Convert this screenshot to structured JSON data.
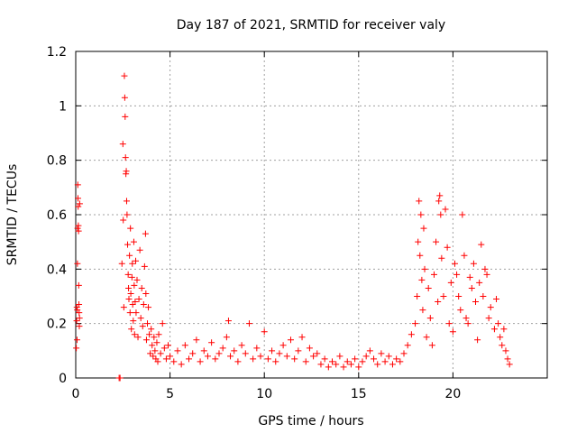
{
  "chart_data": {
    "type": "scatter",
    "title": "Day 187 of 2021, SRMTID for receiver valy",
    "xlabel": "GPS time / hours",
    "ylabel": "SRMTID / TECUs",
    "xlim": [
      0,
      25
    ],
    "ylim": [
      0,
      1.2
    ],
    "x_ticks": [
      0,
      5,
      10,
      15,
      20
    ],
    "x_tick_labels": [
      "0",
      "5",
      "10",
      "15",
      "20"
    ],
    "y_ticks": [
      0,
      0.2,
      0.4,
      0.6,
      0.8,
      1.0,
      1.2
    ],
    "y_tick_labels": [
      "0",
      "0.2",
      "0.4",
      "0.6",
      "0.8",
      "1",
      "1.2"
    ],
    "grid": true,
    "legend": "none",
    "marker": "+",
    "marker_color": "#ff0000",
    "series": [
      {
        "name": "SRMTID",
        "points": [
          [
            0.03,
            0.11
          ],
          [
            0.05,
            0.21
          ],
          [
            0.06,
            0.26
          ],
          [
            0.07,
            0.14
          ],
          [
            0.08,
            0.25
          ],
          [
            0.09,
            0.42
          ],
          [
            0.1,
            0.55
          ],
          [
            0.11,
            0.71
          ],
          [
            0.12,
            0.66
          ],
          [
            0.13,
            0.63
          ],
          [
            0.14,
            0.56
          ],
          [
            0.15,
            0.54
          ],
          [
            0.16,
            0.34
          ],
          [
            0.17,
            0.27
          ],
          [
            0.18,
            0.24
          ],
          [
            0.19,
            0.19
          ],
          [
            0.2,
            0.22
          ],
          [
            0.21,
            0.64
          ],
          [
            2.3,
            0.0
          ],
          [
            2.35,
            0.0
          ],
          [
            2.45,
            0.42
          ],
          [
            2.5,
            0.86
          ],
          [
            2.52,
            0.58
          ],
          [
            2.55,
            0.26
          ],
          [
            2.58,
            1.11
          ],
          [
            2.6,
            1.03
          ],
          [
            2.62,
            0.96
          ],
          [
            2.64,
            0.81
          ],
          [
            2.66,
            0.75
          ],
          [
            2.68,
            0.76
          ],
          [
            2.7,
            0.65
          ],
          [
            2.72,
            0.6
          ],
          [
            2.75,
            0.49
          ],
          [
            2.78,
            0.38
          ],
          [
            2.8,
            0.33
          ],
          [
            2.82,
            0.29
          ],
          [
            2.85,
            0.45
          ],
          [
            2.88,
            0.24
          ],
          [
            2.9,
            0.55
          ],
          [
            2.92,
            0.31
          ],
          [
            2.95,
            0.18
          ],
          [
            2.98,
            0.37
          ],
          [
            3.0,
            0.42
          ],
          [
            3.02,
            0.27
          ],
          [
            3.05,
            0.21
          ],
          [
            3.08,
            0.5
          ],
          [
            3.1,
            0.34
          ],
          [
            3.12,
            0.16
          ],
          [
            3.15,
            0.28
          ],
          [
            3.18,
            0.43
          ],
          [
            3.2,
            0.24
          ],
          [
            3.25,
            0.36
          ],
          [
            3.3,
            0.15
          ],
          [
            3.35,
            0.29
          ],
          [
            3.4,
            0.47
          ],
          [
            3.45,
            0.22
          ],
          [
            3.5,
            0.33
          ],
          [
            3.55,
            0.19
          ],
          [
            3.6,
            0.27
          ],
          [
            3.65,
            0.41
          ],
          [
            3.7,
            0.53
          ],
          [
            3.72,
            0.31
          ],
          [
            3.75,
            0.14
          ],
          [
            3.8,
            0.2
          ],
          [
            3.85,
            0.26
          ],
          [
            3.9,
            0.16
          ],
          [
            3.95,
            0.09
          ],
          [
            4.0,
            0.18
          ],
          [
            4.05,
            0.12
          ],
          [
            4.1,
            0.08
          ],
          [
            4.15,
            0.15
          ],
          [
            4.2,
            0.1
          ],
          [
            4.25,
            0.07
          ],
          [
            4.3,
            0.13
          ],
          [
            4.35,
            0.06
          ],
          [
            4.4,
            0.16
          ],
          [
            4.5,
            0.09
          ],
          [
            4.6,
            0.2
          ],
          [
            4.7,
            0.11
          ],
          [
            4.8,
            0.07
          ],
          [
            4.9,
            0.12
          ],
          [
            5.0,
            0.08
          ],
          [
            5.2,
            0.06
          ],
          [
            5.4,
            0.1
          ],
          [
            5.6,
            0.05
          ],
          [
            5.8,
            0.12
          ],
          [
            6.0,
            0.07
          ],
          [
            6.2,
            0.09
          ],
          [
            6.4,
            0.14
          ],
          [
            6.6,
            0.06
          ],
          [
            6.8,
            0.1
          ],
          [
            7.0,
            0.08
          ],
          [
            7.2,
            0.13
          ],
          [
            7.4,
            0.07
          ],
          [
            7.6,
            0.09
          ],
          [
            7.8,
            0.11
          ],
          [
            8.0,
            0.15
          ],
          [
            8.1,
            0.21
          ],
          [
            8.2,
            0.08
          ],
          [
            8.4,
            0.1
          ],
          [
            8.6,
            0.06
          ],
          [
            8.8,
            0.12
          ],
          [
            9.0,
            0.09
          ],
          [
            9.2,
            0.2
          ],
          [
            9.4,
            0.07
          ],
          [
            9.6,
            0.11
          ],
          [
            9.8,
            0.08
          ],
          [
            10.0,
            0.17
          ],
          [
            10.2,
            0.07
          ],
          [
            10.4,
            0.1
          ],
          [
            10.6,
            0.06
          ],
          [
            10.8,
            0.09
          ],
          [
            11.0,
            0.12
          ],
          [
            11.2,
            0.08
          ],
          [
            11.4,
            0.14
          ],
          [
            11.6,
            0.07
          ],
          [
            11.8,
            0.1
          ],
          [
            12.0,
            0.15
          ],
          [
            12.2,
            0.06
          ],
          [
            12.4,
            0.11
          ],
          [
            12.6,
            0.08
          ],
          [
            12.8,
            0.09
          ],
          [
            13.0,
            0.05
          ],
          [
            13.2,
            0.07
          ],
          [
            13.4,
            0.04
          ],
          [
            13.6,
            0.06
          ],
          [
            13.8,
            0.05
          ],
          [
            14.0,
            0.08
          ],
          [
            14.2,
            0.04
          ],
          [
            14.4,
            0.06
          ],
          [
            14.6,
            0.05
          ],
          [
            14.8,
            0.07
          ],
          [
            15.0,
            0.04
          ],
          [
            15.2,
            0.06
          ],
          [
            15.4,
            0.08
          ],
          [
            15.6,
            0.1
          ],
          [
            15.8,
            0.07
          ],
          [
            16.0,
            0.05
          ],
          [
            16.2,
            0.09
          ],
          [
            16.4,
            0.06
          ],
          [
            16.6,
            0.08
          ],
          [
            16.8,
            0.05
          ],
          [
            17.0,
            0.07
          ],
          [
            17.2,
            0.06
          ],
          [
            17.4,
            0.09
          ],
          [
            17.6,
            0.12
          ],
          [
            17.8,
            0.16
          ],
          [
            18.0,
            0.2
          ],
          [
            18.1,
            0.3
          ],
          [
            18.15,
            0.5
          ],
          [
            18.2,
            0.65
          ],
          [
            18.25,
            0.45
          ],
          [
            18.3,
            0.6
          ],
          [
            18.35,
            0.36
          ],
          [
            18.4,
            0.25
          ],
          [
            18.45,
            0.55
          ],
          [
            18.5,
            0.4
          ],
          [
            18.6,
            0.15
          ],
          [
            18.7,
            0.33
          ],
          [
            18.8,
            0.22
          ],
          [
            18.9,
            0.12
          ],
          [
            19.0,
            0.38
          ],
          [
            19.1,
            0.5
          ],
          [
            19.2,
            0.28
          ],
          [
            19.25,
            0.65
          ],
          [
            19.3,
            0.67
          ],
          [
            19.35,
            0.6
          ],
          [
            19.4,
            0.44
          ],
          [
            19.5,
            0.3
          ],
          [
            19.6,
            0.62
          ],
          [
            19.7,
            0.48
          ],
          [
            19.8,
            0.2
          ],
          [
            19.9,
            0.35
          ],
          [
            20.0,
            0.17
          ],
          [
            20.1,
            0.42
          ],
          [
            20.2,
            0.38
          ],
          [
            20.3,
            0.3
          ],
          [
            20.4,
            0.25
          ],
          [
            20.5,
            0.6
          ],
          [
            20.6,
            0.45
          ],
          [
            20.7,
            0.22
          ],
          [
            20.8,
            0.2
          ],
          [
            20.9,
            0.37
          ],
          [
            21.0,
            0.33
          ],
          [
            21.1,
            0.42
          ],
          [
            21.2,
            0.28
          ],
          [
            21.3,
            0.14
          ],
          [
            21.4,
            0.35
          ],
          [
            21.5,
            0.49
          ],
          [
            21.6,
            0.3
          ],
          [
            21.7,
            0.4
          ],
          [
            21.8,
            0.38
          ],
          [
            21.9,
            0.22
          ],
          [
            22.0,
            0.26
          ],
          [
            22.2,
            0.18
          ],
          [
            22.3,
            0.29
          ],
          [
            22.4,
            0.2
          ],
          [
            22.5,
            0.15
          ],
          [
            22.6,
            0.12
          ],
          [
            22.7,
            0.18
          ],
          [
            22.8,
            0.1
          ],
          [
            22.9,
            0.07
          ],
          [
            23.0,
            0.05
          ]
        ]
      }
    ]
  }
}
